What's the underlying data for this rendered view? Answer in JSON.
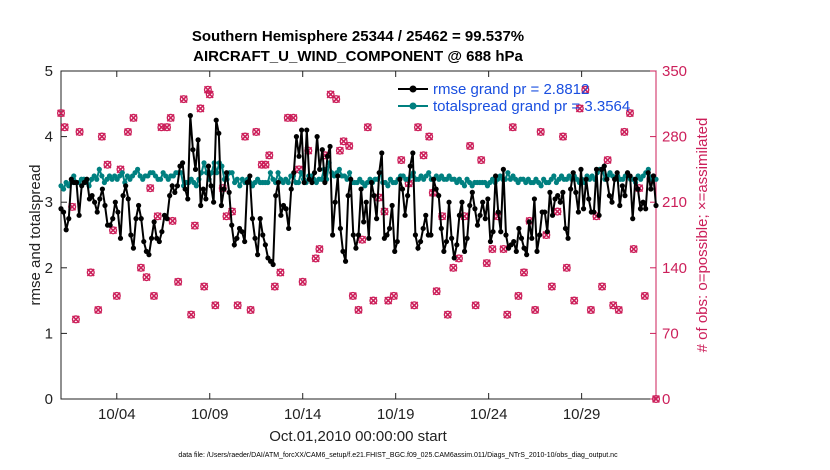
{
  "chart_data": {
    "type": "line",
    "title": "Southern Hemisphere 25344 / 25462 = 99.537%",
    "subtitle": "AIRCRAFT_U_WIND_COMPONENT @ 688 hPa",
    "xlabel": "Oct.01,2010 00:00:00 start",
    "ylabel": "rmse and totalspread",
    "y2label": "# of obs: o=possible; ×=assimilated",
    "ylim": [
      0,
      5
    ],
    "y2lim": [
      0,
      350
    ],
    "xlim": [
      1,
      33
    ],
    "y_ticks": [
      "0",
      "1",
      "2",
      "3",
      "4",
      "5"
    ],
    "y2_ticks": [
      "0",
      "70",
      "140",
      "210",
      "280",
      "350"
    ],
    "x_ticks": [
      {
        "x": 4,
        "label": "10/04"
      },
      {
        "x": 9,
        "label": "10/09"
      },
      {
        "x": 14,
        "label": "10/14"
      },
      {
        "x": 19,
        "label": "10/19"
      },
      {
        "x": 24,
        "label": "10/24"
      },
      {
        "x": 29,
        "label": "10/29"
      }
    ],
    "grid": false,
    "legend_position": "top-right",
    "footer": "data file: /Users/raeder/DAI/ATM_forcXX/CAM6_setup/f.e21.FHIST_BGC.f09_025.CAM6assim.011/Diags_NTrS_2010-10/obs_diag_output.nc",
    "colors": {
      "rmse": "#000000",
      "spread": "#008080",
      "obs": "#cc1f5a",
      "legend_text": "#1a4fe0",
      "right_axis": "#cc1f5a"
    },
    "series": [
      {
        "name": "rmse grand pr = 2.8812",
        "color": "#000000",
        "values": [
          2.9,
          2.85,
          2.58,
          2.75,
          3.35,
          3.3,
          3.3,
          2.8,
          3.25,
          3.3,
          3.35,
          3.05,
          3.1,
          3.0,
          2.85,
          3.05,
          3.2,
          2.95,
          2.65,
          2.65,
          2.75,
          3.0,
          2.85,
          2.45,
          3.1,
          3.25,
          3.05,
          2.5,
          2.3,
          2.75,
          2.95,
          2.75,
          2.4,
          2.25,
          2.2,
          2.45,
          2.7,
          2.45,
          2.4,
          2.55,
          2.8,
          2.75,
          3.1,
          3.25,
          3.15,
          3.25,
          3.55,
          3.6,
          3.2,
          3.05,
          4.32,
          3.8,
          3.5,
          3.95,
          2.95,
          3.2,
          3.05,
          3.55,
          3.25,
          3.0,
          4.25,
          4.05,
          2.95,
          3.2,
          3.45,
          3.15,
          2.65,
          2.35,
          2.45,
          2.6,
          2.55,
          2.4,
          3.3,
          3.4,
          2.75,
          2.45,
          2.2,
          2.75,
          2.5,
          2.35,
          2.15,
          2.1,
          2.05,
          3.1,
          3.3,
          2.8,
          2.95,
          2.9,
          2.6,
          3.2,
          3.45,
          4.0,
          3.7,
          4.1,
          3.3,
          4.1,
          3.35,
          3.3,
          3.45,
          4.0,
          3.5,
          3.8,
          3.3,
          3.7,
          3.85,
          2.5,
          3.0,
          3.4,
          2.6,
          2.25,
          2.1,
          3.1,
          3.35,
          2.5,
          2.3,
          2.5,
          3.2,
          2.7,
          3.0,
          2.45,
          3.3,
          3.1,
          2.75,
          3.45,
          3.75,
          2.45,
          2.5,
          2.6,
          2.95,
          2.25,
          2.4,
          3.35,
          3.2,
          2.8,
          3.1,
          3.55,
          3.75,
          2.5,
          2.3,
          2.4,
          2.6,
          2.8,
          2.5,
          2.5,
          3.35,
          3.2,
          3.1,
          2.6,
          2.25,
          2.4,
          3.0,
          2.45,
          2.15,
          2.35,
          2.8,
          3.0,
          2.25,
          2.45,
          2.95,
          3.15,
          2.9,
          2.65,
          2.8,
          3.0,
          2.75,
          3.05,
          2.4,
          2.55,
          3.4,
          2.85,
          2.55,
          3.5,
          2.5,
          2.3,
          2.35,
          2.4,
          2.25,
          2.6,
          2.45,
          2.3,
          2.2,
          2.7,
          2.45,
          3.05,
          2.25,
          2.5,
          2.85,
          2.85,
          2.55,
          3.15,
          2.8,
          3.05,
          3.1,
          3.0,
          3.15,
          2.6,
          2.45,
          3.2,
          3.45,
          3.15,
          2.85,
          3.5,
          2.9,
          3.35,
          3.05,
          2.85,
          2.85,
          3.5,
          2.8,
          3.5,
          3.55,
          3.35,
          3.1,
          3.0,
          3.35,
          3.45,
          2.95,
          3.25,
          3.1,
          3.45,
          3.4,
          2.75,
          3.35,
          3.2,
          2.9,
          3.0,
          2.9,
          3.45,
          3.2,
          3.4,
          2.95
        ]
      },
      {
        "name": "totalspread grand pr = 3.3564",
        "color": "#008080",
        "values": [
          3.25,
          3.2,
          3.3,
          3.25,
          3.3,
          3.4,
          3.3,
          3.3,
          3.35,
          3.35,
          3.3,
          3.25,
          3.35,
          3.4,
          3.35,
          3.5,
          3.4,
          3.3,
          3.35,
          3.4,
          3.35,
          3.4,
          3.35,
          3.4,
          3.45,
          3.3,
          3.4,
          3.35,
          3.4,
          3.45,
          3.5,
          3.4,
          3.35,
          3.4,
          3.4,
          3.45,
          3.45,
          3.4,
          3.35,
          3.35,
          3.45,
          3.4,
          3.35,
          3.4,
          3.4,
          3.45,
          3.45,
          3.45,
          3.25,
          3.3,
          3.3,
          3.35,
          3.3,
          3.25,
          3.35,
          3.45,
          3.6,
          3.45,
          3.35,
          3.45,
          3.6,
          3.45,
          3.6,
          3.55,
          3.35,
          3.35,
          3.45,
          3.45,
          3.3,
          3.35,
          3.25,
          3.35,
          3.3,
          3.35,
          3.3,
          3.25,
          3.3,
          3.35,
          3.3,
          3.3,
          3.3,
          3.3,
          3.45,
          3.35,
          3.3,
          3.45,
          3.35,
          3.3,
          3.35,
          3.3,
          3.4,
          3.4,
          3.3,
          3.3,
          3.45,
          3.35,
          3.3,
          3.4,
          3.4,
          3.35,
          3.3,
          3.35,
          3.35,
          3.5,
          3.35,
          3.6,
          3.45,
          3.4,
          3.45,
          3.5,
          3.4,
          3.4,
          3.35,
          3.45,
          3.3,
          3.3,
          3.3,
          3.35,
          3.3,
          3.25,
          3.3,
          3.35,
          3.3,
          3.35,
          3.35,
          3.45,
          3.3,
          3.3,
          3.25,
          3.35,
          3.3,
          3.3,
          3.35,
          3.4,
          3.4,
          3.35,
          3.35,
          3.4,
          3.45,
          3.35,
          3.35,
          3.4,
          3.35,
          3.4,
          3.45,
          3.35,
          3.35,
          3.4,
          3.35,
          3.4,
          3.35,
          3.35,
          3.4,
          3.35,
          3.35,
          3.3,
          3.35,
          3.3,
          3.25,
          3.35,
          3.3,
          3.25,
          3.3,
          3.3,
          3.3,
          3.3,
          3.3,
          3.25,
          3.3,
          3.35,
          3.3,
          3.35,
          3.4,
          3.35,
          3.35,
          3.45,
          3.35,
          3.4,
          3.35,
          3.3,
          3.35,
          3.35,
          3.3,
          3.35,
          3.3,
          3.3,
          3.35,
          3.3,
          3.25,
          3.35,
          3.3,
          3.3,
          3.35,
          3.4,
          3.3,
          3.35,
          3.4,
          3.35,
          3.35,
          3.4,
          3.35,
          3.4,
          3.35,
          3.3,
          3.35,
          3.3,
          3.4,
          3.35,
          3.4,
          3.35,
          3.45,
          3.5,
          3.5,
          3.35,
          3.4,
          3.45,
          3.4,
          3.35,
          3.4,
          3.35,
          3.35,
          3.4,
          3.4,
          3.35,
          3.35,
          3.3,
          3.4,
          3.35,
          3.4,
          3.45,
          3.5,
          3.35,
          3.4,
          3.35
        ]
      }
    ],
    "obs_points": [
      {
        "x": 1.0,
        "y": 305
      },
      {
        "x": 1.2,
        "y": 290
      },
      {
        "x": 1.6,
        "y": 205
      },
      {
        "x": 1.8,
        "y": 85
      },
      {
        "x": 2.0,
        "y": 285
      },
      {
        "x": 2.6,
        "y": 135
      },
      {
        "x": 3.0,
        "y": 95
      },
      {
        "x": 3.2,
        "y": 280
      },
      {
        "x": 3.5,
        "y": 250
      },
      {
        "x": 3.8,
        "y": 180
      },
      {
        "x": 4.0,
        "y": 110
      },
      {
        "x": 4.2,
        "y": 245
      },
      {
        "x": 4.6,
        "y": 285
      },
      {
        "x": 4.9,
        "y": 300
      },
      {
        "x": 5.3,
        "y": 140
      },
      {
        "x": 5.6,
        "y": 130
      },
      {
        "x": 5.8,
        "y": 225
      },
      {
        "x": 6.0,
        "y": 110
      },
      {
        "x": 6.2,
        "y": 195
      },
      {
        "x": 6.4,
        "y": 290
      },
      {
        "x": 6.7,
        "y": 290
      },
      {
        "x": 6.9,
        "y": 300
      },
      {
        "x": 7.0,
        "y": 190
      },
      {
        "x": 7.3,
        "y": 125
      },
      {
        "x": 7.6,
        "y": 320
      },
      {
        "x": 8.0,
        "y": 90
      },
      {
        "x": 8.2,
        "y": 185
      },
      {
        "x": 8.5,
        "y": 310
      },
      {
        "x": 8.7,
        "y": 120
      },
      {
        "x": 8.9,
        "y": 330
      },
      {
        "x": 9.0,
        "y": 325
      },
      {
        "x": 9.3,
        "y": 100
      },
      {
        "x": 9.7,
        "y": 225
      },
      {
        "x": 9.9,
        "y": 195
      },
      {
        "x": 10.2,
        "y": 200
      },
      {
        "x": 10.5,
        "y": 100
      },
      {
        "x": 10.9,
        "y": 280
      },
      {
        "x": 11.2,
        "y": 95
      },
      {
        "x": 11.5,
        "y": 285
      },
      {
        "x": 11.8,
        "y": 250
      },
      {
        "x": 12.0,
        "y": 250
      },
      {
        "x": 12.2,
        "y": 260
      },
      {
        "x": 12.5,
        "y": 120
      },
      {
        "x": 12.8,
        "y": 135
      },
      {
        "x": 13.2,
        "y": 300
      },
      {
        "x": 13.5,
        "y": 300
      },
      {
        "x": 13.8,
        "y": 245
      },
      {
        "x": 14.0,
        "y": 125
      },
      {
        "x": 14.3,
        "y": 265
      },
      {
        "x": 14.7,
        "y": 150
      },
      {
        "x": 14.9,
        "y": 160
      },
      {
        "x": 15.2,
        "y": 260
      },
      {
        "x": 15.5,
        "y": 325
      },
      {
        "x": 15.8,
        "y": 320
      },
      {
        "x": 16.0,
        "y": 265
      },
      {
        "x": 16.2,
        "y": 275
      },
      {
        "x": 16.5,
        "y": 270
      },
      {
        "x": 16.7,
        "y": 110
      },
      {
        "x": 17.0,
        "y": 95
      },
      {
        "x": 17.2,
        "y": 170
      },
      {
        "x": 17.5,
        "y": 290
      },
      {
        "x": 17.8,
        "y": 105
      },
      {
        "x": 18.1,
        "y": 215
      },
      {
        "x": 18.4,
        "y": 200
      },
      {
        "x": 18.6,
        "y": 105
      },
      {
        "x": 18.9,
        "y": 110
      },
      {
        "x": 19.3,
        "y": 255
      },
      {
        "x": 19.7,
        "y": 230
      },
      {
        "x": 20.0,
        "y": 100
      },
      {
        "x": 20.2,
        "y": 290
      },
      {
        "x": 20.5,
        "y": 260
      },
      {
        "x": 20.8,
        "y": 280
      },
      {
        "x": 21.0,
        "y": 220
      },
      {
        "x": 21.2,
        "y": 115
      },
      {
        "x": 21.5,
        "y": 195
      },
      {
        "x": 21.8,
        "y": 90
      },
      {
        "x": 22.1,
        "y": 140
      },
      {
        "x": 22.4,
        "y": 150
      },
      {
        "x": 22.7,
        "y": 195
      },
      {
        "x": 23.0,
        "y": 270
      },
      {
        "x": 23.3,
        "y": 100
      },
      {
        "x": 23.6,
        "y": 255
      },
      {
        "x": 23.9,
        "y": 145
      },
      {
        "x": 24.2,
        "y": 160
      },
      {
        "x": 24.5,
        "y": 195
      },
      {
        "x": 24.8,
        "y": 160
      },
      {
        "x": 25.0,
        "y": 90
      },
      {
        "x": 25.3,
        "y": 290
      },
      {
        "x": 25.6,
        "y": 110
      },
      {
        "x": 25.9,
        "y": 135
      },
      {
        "x": 26.2,
        "y": 190
      },
      {
        "x": 26.5,
        "y": 95
      },
      {
        "x": 26.8,
        "y": 285
      },
      {
        "x": 27.1,
        "y": 175
      },
      {
        "x": 27.4,
        "y": 120
      },
      {
        "x": 27.7,
        "y": 200
      },
      {
        "x": 28.0,
        "y": 280
      },
      {
        "x": 28.2,
        "y": 140
      },
      {
        "x": 28.6,
        "y": 105
      },
      {
        "x": 28.9,
        "y": 310
      },
      {
        "x": 29.2,
        "y": 330
      },
      {
        "x": 29.5,
        "y": 95
      },
      {
        "x": 29.8,
        "y": 195
      },
      {
        "x": 30.1,
        "y": 120
      },
      {
        "x": 30.4,
        "y": 255
      },
      {
        "x": 30.7,
        "y": 100
      },
      {
        "x": 31.0,
        "y": 95
      },
      {
        "x": 31.3,
        "y": 285
      },
      {
        "x": 31.6,
        "y": 305
      },
      {
        "x": 31.8,
        "y": 160
      },
      {
        "x": 32.1,
        "y": 225
      },
      {
        "x": 32.4,
        "y": 110
      },
      {
        "x": 32.7,
        "y": 235
      },
      {
        "x": 33.0,
        "y": 0
      }
    ]
  }
}
